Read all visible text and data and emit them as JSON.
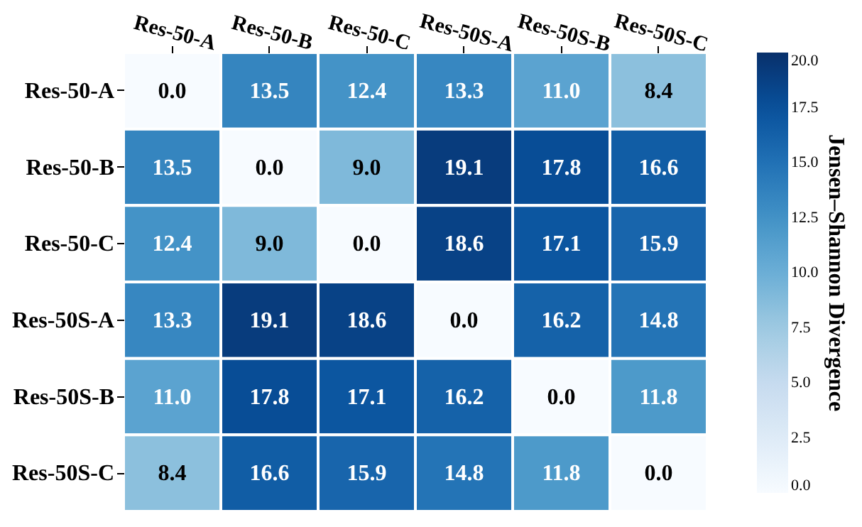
{
  "chart_data": {
    "type": "heatmap",
    "clabel": "Jensen–Shannon Divergence",
    "categories": [
      "Res-50-A",
      "Res-50-B",
      "Res-50-C",
      "Res-50S-A",
      "Res-50S-B",
      "Res-50S-C"
    ],
    "y_categories": [
      "Res-50-A",
      "Res-50-B",
      "Res-50-C",
      "Res-50S-A",
      "Res-50S-B",
      "Res-50S-C"
    ],
    "cells": [
      [
        0.0,
        13.5,
        12.4,
        13.3,
        11.0,
        8.4
      ],
      [
        13.5,
        0.0,
        9.0,
        19.1,
        17.8,
        16.6
      ],
      [
        12.4,
        9.0,
        0.0,
        18.6,
        17.1,
        15.9
      ],
      [
        13.3,
        19.1,
        18.6,
        0.0,
        16.2,
        14.8
      ],
      [
        11.0,
        17.8,
        17.1,
        16.2,
        0.0,
        11.8
      ],
      [
        8.4,
        16.6,
        15.9,
        14.8,
        11.8,
        0.0
      ]
    ],
    "cell_labels": [
      [
        "0.0",
        "13.5",
        "12.4",
        "13.3",
        "11.0",
        "8.4"
      ],
      [
        "13.5",
        "0.0",
        "9.0",
        "19.1",
        "17.8",
        "16.6"
      ],
      [
        "12.4",
        "9.0",
        "0.0",
        "18.6",
        "17.1",
        "15.9"
      ],
      [
        "13.3",
        "19.1",
        "18.6",
        "0.0",
        "16.2",
        "14.8"
      ],
      [
        "11.0",
        "17.8",
        "17.1",
        "16.2",
        "0.0",
        "11.8"
      ],
      [
        "8.4",
        "16.6",
        "15.9",
        "14.8",
        "11.8",
        "0.0"
      ]
    ],
    "clim": [
      0,
      20
    ],
    "cticks": [
      {
        "value": 0,
        "label": "0.0"
      },
      {
        "value": 2.5,
        "label": "2.5"
      },
      {
        "value": 5,
        "label": "5.0"
      },
      {
        "value": 7.5,
        "label": "7.5"
      },
      {
        "value": 10,
        "label": "10.0"
      },
      {
        "value": 12.5,
        "label": "12.5"
      },
      {
        "value": 15,
        "label": "15.0"
      },
      {
        "value": 17.5,
        "label": "17.5"
      },
      {
        "value": 20,
        "label": "20.0"
      }
    ],
    "data_labels": true
  }
}
